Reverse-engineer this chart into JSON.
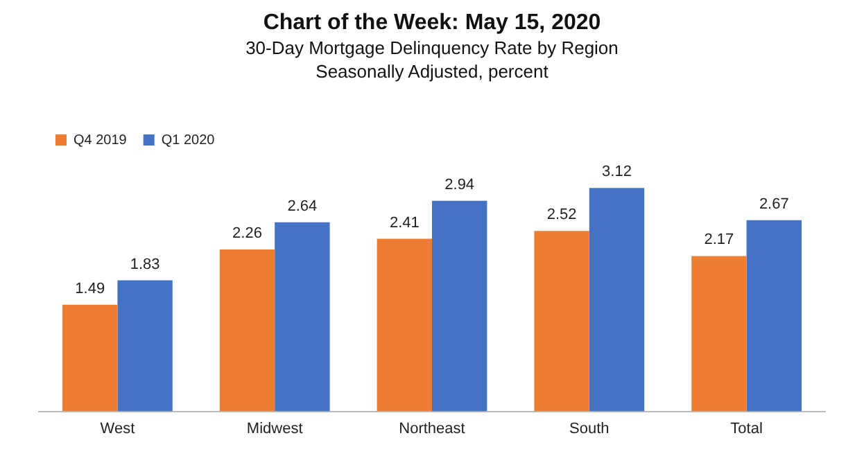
{
  "chart_data": {
    "type": "bar",
    "title": "Chart of the Week:  May 15, 2020",
    "subtitle": "30-Day Mortgage Delinquency Rate by Region\nSeasonally Adjusted, percent",
    "categories": [
      "West",
      "Midwest",
      "Northeast",
      "South",
      "Total"
    ],
    "series": [
      {
        "name": "Q4 2019",
        "color": "#ed7d31",
        "values": [
          1.49,
          2.26,
          2.41,
          2.52,
          2.17
        ]
      },
      {
        "name": "Q1 2020",
        "color": "#4472c4",
        "values": [
          1.83,
          2.64,
          2.94,
          3.12,
          2.67
        ]
      }
    ],
    "tick_labels": "x",
    "grid": false,
    "legend": "top left",
    "data_labels": true
  }
}
